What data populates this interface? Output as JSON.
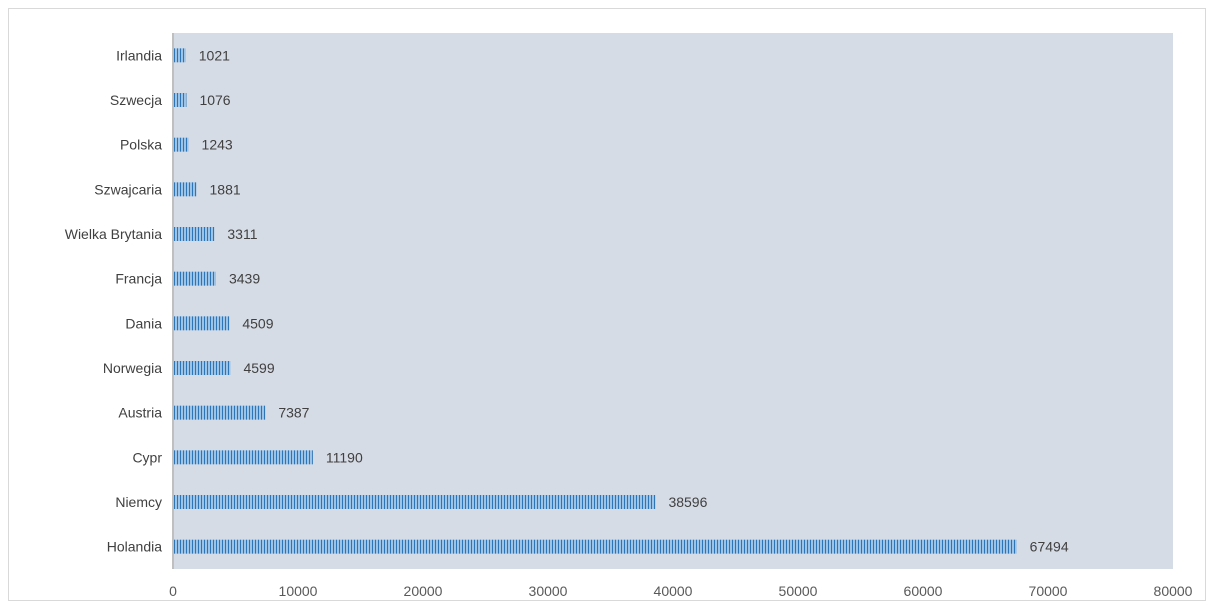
{
  "chart_data": {
    "type": "bar",
    "orientation": "horizontal",
    "title": "",
    "xlabel": "",
    "ylabel": "",
    "categories": [
      "Irlandia",
      "Szwecja",
      "Polska",
      "Szwajcaria",
      "Wielka Brytania",
      "Francja",
      "Dania",
      "Norwegia",
      "Austria",
      "Cypr",
      "Niemcy",
      "Holandia"
    ],
    "values": [
      1021,
      1076,
      1243,
      1881,
      3311,
      3439,
      4509,
      4599,
      7387,
      11190,
      38596,
      67494
    ],
    "xlim": [
      0,
      80000
    ],
    "xticks": [
      0,
      10000,
      20000,
      30000,
      40000,
      50000,
      60000,
      70000,
      80000
    ],
    "tick_labels": [
      "0",
      "10000",
      "20000",
      "30000",
      "40000",
      "50000",
      "60000",
      "70000",
      "80000"
    ],
    "data_labels": [
      "1021",
      "1076",
      "1243",
      "1881",
      "3311",
      "3439",
      "4509",
      "4599",
      "7387",
      "11190",
      "38596",
      "67494"
    ],
    "grid": false,
    "legend": "none",
    "colors": {
      "plot_background": "#d6dce5",
      "bar_light": "#9dc3e6",
      "bar_dark": "#2e75b6",
      "text": "#404040",
      "axis": "#bfbfbf"
    }
  }
}
